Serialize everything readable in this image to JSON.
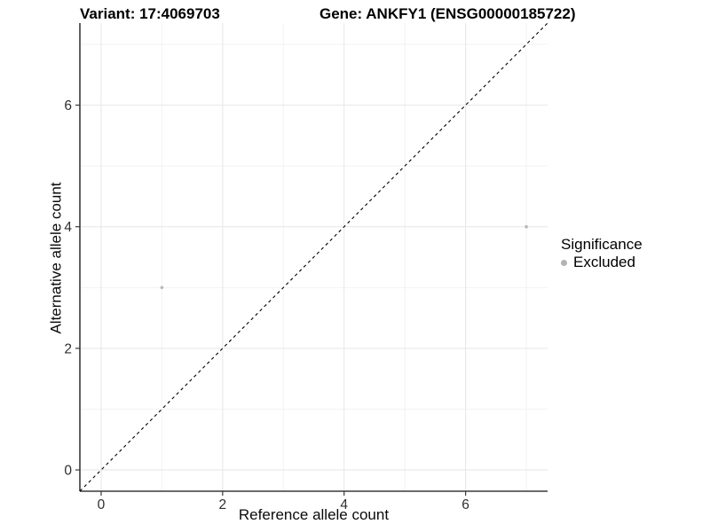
{
  "titles": {
    "variant": "Variant: 17:4069703",
    "gene": "Gene: ANKFY1 (ENSG00000185722)"
  },
  "legend": {
    "title": "Significance",
    "items": [
      {
        "label": "Excluded",
        "color": "#b3b3b3"
      }
    ]
  },
  "chart_data": {
    "type": "scatter",
    "title_left": "Variant: 17:4069703",
    "title_right": "Gene: ANKFY1 (ENSG00000185722)",
    "xlabel": "Reference allele count",
    "ylabel": "Alternative allele count",
    "xlim": [
      -0.35,
      7.35
    ],
    "ylim": [
      -0.35,
      7.35
    ],
    "x_ticks": [
      0,
      2,
      4,
      6
    ],
    "y_ticks": [
      0,
      2,
      4,
      6
    ],
    "x_minor": [
      1,
      3,
      5,
      7
    ],
    "y_minor": [
      1,
      3,
      5,
      7
    ],
    "grid": true,
    "legend_position": "right",
    "identity_line": {
      "style": "dashed",
      "x1": -0.35,
      "y1": -0.35,
      "x2": 7.35,
      "y2": 7.35
    },
    "series": [
      {
        "name": "Excluded",
        "points": [
          {
            "x": 1,
            "y": 3
          },
          {
            "x": 7,
            "y": 4
          }
        ]
      }
    ],
    "colors": {
      "point": "#b8b8b8",
      "identity": "#000000",
      "axis": "#3a3a3a",
      "tick_label": "#2e2e2e",
      "grid_major": "#e6e6e6",
      "grid_minor": "#f2f2f2",
      "background": "#ffffff"
    }
  }
}
